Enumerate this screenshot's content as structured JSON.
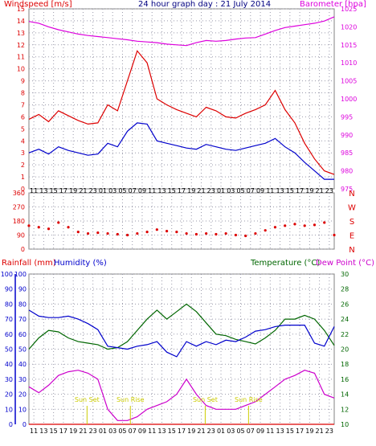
{
  "colors": {
    "wind_avg": "#0000cc",
    "wind_gust": "#dd0000",
    "barometer": "#dd00dd",
    "direction": "#dd0000",
    "rainfall": "#dd0000",
    "humidity": "#0000cc",
    "temperature": "#006600",
    "dewpoint": "#cc00cc",
    "sun": "#cccc00",
    "grid": "#9999aa",
    "frame": "#808080"
  },
  "top": {
    "title": "24 hour graph day : 21 July 2014",
    "left_label": "Windspeed [m/s]",
    "right_label": "Barometer [hpa]",
    "left_ticks": [
      "15",
      "14",
      "13",
      "12",
      "11",
      "10",
      "9",
      "8",
      "7",
      "6",
      "5",
      "4",
      "3",
      "2",
      "1",
      "0"
    ],
    "right_ticks": [
      "1025",
      "1020",
      "1015",
      "1010",
      "1005",
      "1000",
      "995",
      "990",
      "985",
      "980",
      "975"
    ]
  },
  "middle": {
    "left_ticks": [
      "360",
      "270",
      "180",
      "90",
      "0"
    ],
    "direction_labels": [
      "N",
      "W",
      "S",
      "E",
      "N"
    ]
  },
  "bottom": {
    "left_label_rain": "Rainfall (mm)",
    "left_label_hum": "Humidity (%)",
    "right_label_temp": "Temperature (°C)",
    "right_label_dew": "Dew Point (°C)",
    "rain_ticks": [
      "100",
      "90",
      "80",
      "70",
      "60",
      "50",
      "40",
      "30",
      "20",
      "10",
      "0"
    ],
    "hum_ticks": [
      "100",
      "90",
      "80",
      "70",
      "60",
      "50",
      "40",
      "30",
      "20",
      "10",
      "0"
    ],
    "temp_ticks": [
      "30",
      "28",
      "26",
      "24",
      "22",
      "20",
      "18",
      "16",
      "14",
      "12",
      "10"
    ],
    "sun_labels": [
      "Sun Set",
      "Sun Rise",
      "Sun Set",
      "Sun Rise"
    ]
  },
  "x_ticks": [
    "11",
    "13",
    "15",
    "17",
    "19",
    "21",
    "23",
    "01",
    "03",
    "05",
    "07",
    "09",
    "11",
    "13",
    "15",
    "17",
    "19",
    "21",
    "23",
    "01",
    "03",
    "05",
    "07",
    "09",
    "11",
    "13",
    "15",
    "17",
    "19",
    "21",
    "23"
  ],
  "chart_data": [
    {
      "type": "line",
      "title": "24 hour graph day : 21 July 2014",
      "x_hours": [
        10,
        12,
        14,
        16,
        18,
        20,
        22,
        24,
        26,
        28,
        30,
        32,
        34,
        36,
        38,
        40,
        42,
        44,
        46,
        48,
        50,
        52,
        54,
        56,
        58,
        60,
        62,
        64,
        66,
        68,
        70,
        72
      ],
      "series": [
        {
          "name": "Windspeed [m/s]",
          "values": [
            3.0,
            3.3,
            2.9,
            3.5,
            3.2,
            3.0,
            2.8,
            2.9,
            3.8,
            3.5,
            4.8,
            5.5,
            5.4,
            4.0,
            3.8,
            3.6,
            3.4,
            3.3,
            3.7,
            3.5,
            3.3,
            3.2,
            3.4,
            3.6,
            3.8,
            4.2,
            3.5,
            3.0,
            2.2,
            1.5,
            0.8,
            0.8
          ]
        },
        {
          "name": "Windspeed [m/s] gust",
          "values": [
            5.8,
            6.2,
            5.6,
            6.5,
            6.1,
            5.7,
            5.4,
            5.5,
            7.0,
            6.5,
            9.0,
            11.5,
            10.5,
            7.5,
            7.0,
            6.6,
            6.3,
            6.0,
            6.8,
            6.5,
            6.0,
            5.9,
            6.3,
            6.6,
            7.0,
            8.2,
            6.6,
            5.5,
            3.8,
            2.5,
            1.5,
            1.2
          ]
        },
        {
          "name": "Barometer [hpa]",
          "values": [
            1021.5,
            1021.0,
            1020.0,
            1019.2,
            1018.6,
            1018.0,
            1017.6,
            1017.3,
            1017.0,
            1016.7,
            1016.4,
            1016.0,
            1015.8,
            1015.6,
            1015.2,
            1015.0,
            1014.8,
            1015.6,
            1016.2,
            1016.0,
            1016.2,
            1016.6,
            1016.9,
            1017.0,
            1018.0,
            1019.0,
            1019.8,
            1020.2,
            1020.6,
            1021.0,
            1021.6,
            1022.8
          ]
        }
      ],
      "ylim_left": [
        0,
        15
      ],
      "ylim_right": [
        975,
        1025
      ]
    },
    {
      "type": "scatter",
      "series": [
        {
          "name": "Wind direction",
          "x_hours": [
            10,
            12,
            14,
            16,
            18,
            20,
            22,
            24,
            26,
            28,
            30,
            32,
            34,
            36,
            38,
            40,
            42,
            44,
            46,
            48,
            50,
            52,
            54,
            56,
            58,
            60,
            62,
            64,
            66,
            68,
            70,
            72
          ],
          "values": [
            150,
            140,
            130,
            170,
            140,
            110,
            100,
            105,
            100,
            95,
            90,
            100,
            110,
            125,
            115,
            110,
            100,
            95,
            100,
            95,
            100,
            90,
            85,
            100,
            120,
            140,
            150,
            160,
            150,
            155,
            170,
            90
          ]
        }
      ],
      "ylim": [
        0,
        360
      ]
    },
    {
      "type": "line",
      "x_hours": [
        10,
        12,
        14,
        16,
        18,
        20,
        22,
        24,
        26,
        28,
        30,
        32,
        34,
        36,
        38,
        40,
        42,
        44,
        46,
        48,
        50,
        52,
        54,
        56,
        58,
        60,
        62,
        64,
        66,
        68,
        70,
        72
      ],
      "series": [
        {
          "name": "Humidity (%)",
          "values": [
            76,
            72,
            71,
            71,
            72,
            70,
            67,
            63,
            52,
            51,
            50,
            52,
            53,
            55,
            48,
            45,
            55,
            52,
            55,
            53,
            56,
            55,
            58,
            62,
            63,
            65,
            66,
            66,
            66,
            54,
            52,
            65
          ]
        },
        {
          "name": "Temperature (°C)",
          "values": [
            20.0,
            21.5,
            22.5,
            22.3,
            21.5,
            21.0,
            20.8,
            20.6,
            20.0,
            20.2,
            21.0,
            22.5,
            24.0,
            25.2,
            24.0,
            25.0,
            26.0,
            25.0,
            23.5,
            22.0,
            21.8,
            21.3,
            21.0,
            20.7,
            21.5,
            22.5,
            24.0,
            24.0,
            24.5,
            24.0,
            22.5,
            20.5
          ]
        },
        {
          "name": "Dew Point (°C)",
          "values": [
            15.0,
            14.2,
            15.2,
            16.5,
            17.0,
            17.2,
            16.8,
            16.0,
            12.0,
            10.5,
            10.5,
            11.0,
            12.0,
            12.5,
            13.0,
            14.0,
            16.0,
            14.0,
            12.5,
            12.0,
            12.0,
            12.0,
            12.5,
            13.0,
            14.0,
            15.0,
            16.0,
            16.5,
            17.2,
            16.8,
            14.0,
            13.5
          ]
        },
        {
          "name": "Rainfall (mm)",
          "values": [
            0,
            0,
            0,
            0,
            0,
            0,
            0,
            0,
            0,
            0,
            0,
            0,
            0,
            0,
            0,
            0,
            0,
            0,
            0,
            0,
            0,
            0,
            0,
            0,
            0,
            0,
            0,
            0,
            0,
            0,
            0,
            0
          ]
        }
      ],
      "ylim_hum": [
        0,
        100
      ],
      "ylim_temp": [
        10,
        30
      ],
      "sun_events": [
        {
          "label": "Sun Set",
          "hour": 21.8
        },
        {
          "label": "Sun Rise",
          "hour": 30.6
        },
        {
          "label": "Sun Set",
          "hour": 45.8
        },
        {
          "label": "Sun Rise",
          "hour": 54.6
        }
      ]
    }
  ]
}
